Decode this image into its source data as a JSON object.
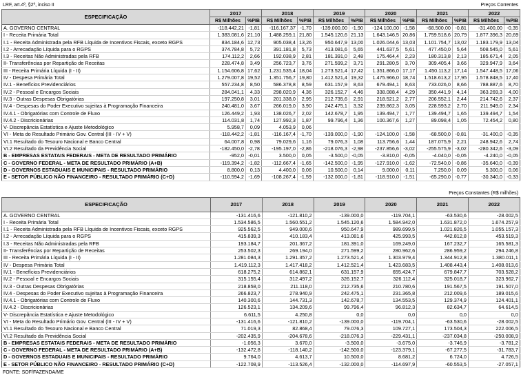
{
  "page": {
    "top_left_note": "LRF, art.4º, §2º, inciso II",
    "source_note": "FONTE: SOF/FAZENDA/ME"
  },
  "table1": {
    "caption": "Preços Correntes",
    "spec_header": "ESPECIFICAÇÃO",
    "years": [
      "2017",
      "2018",
      "2019",
      "2020",
      "2021",
      "2022"
    ],
    "subheaders": [
      "R$ Milhões",
      "%PIB"
    ],
    "rows": [
      {
        "label": "A. GOVERNO CENTRAL",
        "indent": 0,
        "bold": false,
        "section_top": false,
        "values": [
          "-118.442,21",
          "-1,81",
          "-116.167,37",
          "-1,70",
          "-139.000,00",
          "-1,90",
          "-124.100,00",
          "-1,58",
          "-68.500,00",
          "-0,81",
          "-31.400,00",
          "-0,35"
        ]
      },
      {
        "label": "I - Receita Primária Total",
        "indent": 1,
        "bold": false,
        "section_top": false,
        "values": [
          "1.383.081,6",
          "21,10",
          "1.488.259,1",
          "21,80",
          "1.545.120,6",
          "21,13",
          "1.643.146,5",
          "20,86",
          "1.759.518,6",
          "20,79",
          "1.877.396,3",
          "20,69"
        ]
      },
      {
        "label": "I.1 - Receita Administrada pela RFB Líquida de Incentivos Fiscais, exceto RGPS",
        "indent": 2,
        "bold": false,
        "section_top": false,
        "values": [
          "834.184,6",
          "12,73",
          "905.038,4",
          "13,26",
          "950.647,9",
          "13,00",
          "1.026.044,6",
          "13,03",
          "1.101.754,7",
          "13,02",
          "1.183.179,9",
          "13,04"
        ]
      },
      {
        "label": "I.2 - Arrecadação Líquida para o RGPS",
        "indent": 2,
        "bold": false,
        "section_top": false,
        "values": [
          "374.784,8",
          "5,72",
          "391.181,8",
          "5,73",
          "413.081,6",
          "5,65",
          "441.637,5",
          "5,61",
          "477.450,0",
          "5,64",
          "508.545,0",
          "5,61"
        ]
      },
      {
        "label": "I.3 - Receitas Não Administradas pela RFB",
        "indent": 2,
        "bold": false,
        "section_top": false,
        "values": [
          "174.112,2",
          "2,66",
          "192.038,9",
          "2,81",
          "181.391,0",
          "2,48",
          "175.464,4",
          "2,23",
          "180.313,8",
          "2,13",
          "185.671,4",
          "2,05"
        ]
      },
      {
        "label": "II- Transferências por Repartição de Receitas",
        "indent": 1,
        "bold": false,
        "section_top": false,
        "values": [
          "228.474,8",
          "3,49",
          "256.723,7",
          "3,76",
          "271.599,2",
          "3,71",
          "291.280,5",
          "3,70",
          "309.405,4",
          "3,66",
          "329.947,9",
          "3,64"
        ]
      },
      {
        "label": "III - Receita Primária Líquida (I - II)",
        "indent": 1,
        "bold": false,
        "section_top": false,
        "values": [
          "1.154.606,8",
          "17,62",
          "1.231.535,4",
          "18,04",
          "1.273.521,4",
          "17,42",
          "1.351.866,0",
          "17,17",
          "1.450.113,2",
          "17,14",
          "1.547.448,5",
          "17,06"
        ]
      },
      {
        "label": "IV - Despesa Primária Total",
        "indent": 1,
        "bold": false,
        "section_top": false,
        "values": [
          "1.279.007,8",
          "19,52",
          "1.351.756,7",
          "19,80",
          "1.412.521,4",
          "19,32",
          "1.475.966,0",
          "18,74",
          "1.518.613,2",
          "17,95",
          "1.578.848,5",
          "17,40"
        ]
      },
      {
        "label": "IV.1 - Benefícios Previdenciários",
        "indent": 2,
        "bold": false,
        "section_top": false,
        "values": [
          "557.234,8",
          "8,50",
          "586.378,8",
          "8,59",
          "631.157,9",
          "8,63",
          "679.494,1",
          "8,63",
          "733.026,0",
          "8,66",
          "788.887,6",
          "8,70"
        ]
      },
      {
        "label": "IV.2 - Pessoal e Encargos Sociais",
        "indent": 2,
        "bold": false,
        "section_top": false,
        "values": [
          "284.041,1",
          "4,33",
          "298.020,9",
          "4,36",
          "326.152,7",
          "4,46",
          "338.088,4",
          "4,29",
          "350.441,9",
          "4,14",
          "363.269,3",
          "4,00"
        ]
      },
      {
        "label": "IV.3 - Outras Despesas Obrigatórias",
        "indent": 2,
        "bold": false,
        "section_top": false,
        "values": [
          "197.250,8",
          "3,01",
          "201.338,0",
          "2,95",
          "212.735,6",
          "2,91",
          "218.521,2",
          "2,77",
          "206.552,1",
          "2,44",
          "214.742,6",
          "2,37"
        ]
      },
      {
        "label": "IV.4 - Despesas do Poder Executivo sujeitas à Programação Financeira",
        "indent": 2,
        "bold": false,
        "section_top": false,
        "values": [
          "240.481,0",
          "3,67",
          "266.019,0",
          "3,90",
          "242.475,1",
          "3,32",
          "239.862,3",
          "3,05",
          "228.593,2",
          "2,70",
          "211.949,0",
          "2,34"
        ]
      },
      {
        "label": "IV.4.1 - Obrigatórias com Controle de Fluxo",
        "indent": 3,
        "bold": false,
        "section_top": false,
        "values": [
          "126.449,2",
          "1,93",
          "138.026,7",
          "2,02",
          "142.678,7",
          "1,95",
          "139.494,7",
          "1,77",
          "139.494,7",
          "1,65",
          "139.494,7",
          "1,54"
        ]
      },
      {
        "label": "IV.4.2 - Discricionárias",
        "indent": 3,
        "bold": false,
        "section_top": false,
        "values": [
          "114.031,8",
          "1,74",
          "127.992,3",
          "1,87",
          "99.796,4",
          "1,36",
          "100.367,6",
          "1,27",
          "89.098,4",
          "1,05",
          "72.454,2",
          "0,80"
        ]
      },
      {
        "label": "V- Discrepância Estatística e Ajuste Metodológico",
        "indent": 0,
        "bold": false,
        "section_top": false,
        "values": [
          "5.958,7",
          "0,09",
          "4.053,9",
          "0,06",
          "",
          "",
          "",
          "",
          "",
          "",
          "",
          ""
        ]
      },
      {
        "label": "VI - Meta do Resultado Primário Gov. Central (III - IV + V)",
        "indent": 0,
        "bold": false,
        "section_top": false,
        "values": [
          "-118.442,2",
          "-1,81",
          "-116.167,4",
          "-1,70",
          "-139.000,0",
          "-1,90",
          "-124.100,0",
          "-1,58",
          "-68.500,0",
          "-0,81",
          "-31.400,0",
          "-0,35"
        ]
      },
      {
        "label": "VI.1 Resultado do Tesouro Nacional e Banco Central",
        "indent": 1,
        "bold": false,
        "section_top": false,
        "values": [
          "64.007,8",
          "0,98",
          "79.029,6",
          "1,16",
          "79.076,3",
          "1,08",
          "113.756,6",
          "1,44",
          "187.075,9",
          "2,21",
          "248.942,6",
          "2,74"
        ]
      },
      {
        "label": "VI.2 Resultado da Previdência Social",
        "indent": 1,
        "bold": false,
        "section_top": false,
        "values": [
          "-182.450,0",
          "-2,78",
          "-195.197,0",
          "-2,86",
          "-218.076,3",
          "-2,98",
          "-237.856,6",
          "-3,02",
          "-255.575,9",
          "-3,02",
          "-280.342,6",
          "-3,09"
        ]
      },
      {
        "label": "B -  EMPRESAS ESTATAIS FEDERAIS - META DE RESULTADO PRIMÁRIO",
        "indent": 0,
        "bold": true,
        "section_top": true,
        "values": [
          "-952,0",
          "-0,01",
          "3.500,0",
          "0,05",
          "-3.500,0",
          "-0,05",
          "-3.810,0",
          "-0,05",
          "-4.040,0",
          "-0,05",
          "-4.240,0",
          "-0,05"
        ]
      },
      {
        "label": "C - GOVERNO FEDERAL - META DE RESULTADO PRIMÁRIO (A+B)",
        "indent": 0,
        "bold": true,
        "section_top": false,
        "values": [
          "-119.394,2",
          "-1,82",
          "-112.667,4",
          "-1,65",
          "-142.500,0",
          "-1,95",
          "-127.910,0",
          "-1,62",
          "-72.540,0",
          "-0,86",
          "-35.640,0",
          "-0,39"
        ]
      },
      {
        "label": "D - GOVERNOS ESTADUAIS E MUNICIPAIS - RESULTADO PRIMÁRIO",
        "indent": 0,
        "bold": true,
        "section_top": false,
        "values": [
          "8.800,0",
          "0,13",
          "4.400,0",
          "0,06",
          "10.500,0",
          "0,14",
          "9.000,0",
          "0,11",
          "7.250,0",
          "0,09",
          "5.300,0",
          "0,06"
        ]
      },
      {
        "label": "E - SETOR PÚBLICO NÃO FINANCEIRO - RESULTADO PRIMÁRIO (C+D)",
        "indent": 0,
        "bold": true,
        "section_top": false,
        "values": [
          "-110.594,2",
          "-1,69",
          "-108.267,4",
          "-1,59",
          "-132.000,0",
          "-1,81",
          "-118.910,0",
          "-1,51",
          "-65.290,0",
          "-0,77",
          "-30.340,0",
          "-0,33"
        ]
      }
    ]
  },
  "table2": {
    "caption": "Preços Constantes (R$ milhões)",
    "spec_header": "ESPECIFICAÇÃO",
    "years": [
      "2017",
      "2018",
      "2019",
      "2020",
      "2021",
      "2022"
    ],
    "rows": [
      {
        "label": "A. GOVERNO CENTRAL",
        "indent": 0,
        "bold": false,
        "section_top": false,
        "values": [
          "-131.416,6",
          "-121.810,2",
          "-139.000,0",
          "-119.704,1",
          "-63.530,6",
          "-28.002,5"
        ]
      },
      {
        "label": "I - Receita Primária Total",
        "indent": 1,
        "bold": false,
        "section_top": false,
        "values": [
          "1.534.586,5",
          "1.560.551,2",
          "1.545.120,6",
          "1.584.942,0",
          "1.631.872,0",
          "1.674.257,9"
        ]
      },
      {
        "label": "I.1 - Receita Administrada pela RFB Líquida de Incentivos Fiscais, exceto RGPS",
        "indent": 2,
        "bold": false,
        "section_top": false,
        "values": [
          "925.562,5",
          "949.000,6",
          "950.647,9",
          "989.699,5",
          "1.021.826,5",
          "1.055.157,3"
        ]
      },
      {
        "label": "I.2 - Arrecadação Líquida para o RGPS",
        "indent": 2,
        "bold": false,
        "section_top": false,
        "values": [
          "415.839,3",
          "410.183,4",
          "413.081,6",
          "425.993,5",
          "442.812,8",
          "453.519,3"
        ]
      },
      {
        "label": "I.3 - Receitas Não Administradas pela RFB",
        "indent": 2,
        "bold": false,
        "section_top": false,
        "values": [
          "193.184,7",
          "201.367,2",
          "181.391,0",
          "169.249,0",
          "167.232,7",
          "165.581,3"
        ]
      },
      {
        "label": "II- Transferências por Repartição de Receitas",
        "indent": 1,
        "bold": false,
        "section_top": false,
        "values": [
          "253.502,3",
          "269.194,0",
          "271.599,2",
          "280.962,6",
          "286.959,2",
          "294.246,8"
        ]
      },
      {
        "label": "III - Receita Primária Líquida (I - II)",
        "indent": 1,
        "bold": false,
        "section_top": false,
        "values": [
          "1.281.084,3",
          "1.291.357,2",
          "1.273.521,4",
          "1.303.979,4",
          "1.344.912,8",
          "1.380.011,1"
        ]
      },
      {
        "label": "IV - Despesa Primária Total",
        "indent": 1,
        "bold": false,
        "section_top": false,
        "values": [
          "1.419.112,3",
          "1.417.418,2",
          "1.412.521,4",
          "1.423.683,5",
          "1.408.443,4",
          "1.408.013,6"
        ]
      },
      {
        "label": "IV.1 - Benefícios Previdenciários",
        "indent": 2,
        "bold": false,
        "section_top": false,
        "values": [
          "618.275,2",
          "614.862,1",
          "631.157,9",
          "655.424,7",
          "679.847,7",
          "703.528,2"
        ]
      },
      {
        "label": "IV.2 - Pessoal e Encargos Sociais",
        "indent": 2,
        "bold": false,
        "section_top": false,
        "values": [
          "315.155,4",
          "312.497,2",
          "326.152,7",
          "326.112,4",
          "325.018,7",
          "323.962,7"
        ]
      },
      {
        "label": "IV.3 - Outras Despesas Obrigatórias",
        "indent": 2,
        "bold": false,
        "section_top": false,
        "values": [
          "218.858,0",
          "211.118,0",
          "212.735,6",
          "210.780,6",
          "191.567,5",
          "191.507,0"
        ]
      },
      {
        "label": "IV.4 - Despesas do Poder Executivo sujeitas à Programação Financeira",
        "indent": 2,
        "bold": false,
        "section_top": false,
        "values": [
          "266.823,7",
          "278.940,9",
          "242.475,1",
          "231.365,8",
          "212.009,6",
          "189.015,6"
        ]
      },
      {
        "label": "IV.4.1 - Obrigatórias com Controle de Fluxo",
        "indent": 3,
        "bold": false,
        "section_top": false,
        "values": [
          "140.300,6",
          "144.731,3",
          "142.678,7",
          "134.553,5",
          "129.374,9",
          "124.401,1"
        ]
      },
      {
        "label": "IV.4.2 - Discricionárias",
        "indent": 3,
        "bold": false,
        "section_top": false,
        "values": [
          "126.523,1",
          "134.209,6",
          "99.796,4",
          "96.812,3",
          "82.634,7",
          "64.614,5"
        ]
      },
      {
        "label": "V- Discrepância Estatística e Ajuste Metodológico",
        "indent": 0,
        "bold": false,
        "section_top": false,
        "values": [
          "6.611,5",
          "4.250,8",
          "0,0",
          "0,0",
          "0,0",
          "0,0"
        ]
      },
      {
        "label": "VI - Meta do Resultado Primário Gov. Central (III - IV + V)",
        "indent": 0,
        "bold": false,
        "section_top": false,
        "values": [
          "-131.416,6",
          "-121.810,2",
          "-139.000,0",
          "-119.704,1",
          "-63.530,6",
          "-28.002,5"
        ]
      },
      {
        "label": "VI.1 Resultado do Tesouro Nacional e Banco Central",
        "indent": 1,
        "bold": false,
        "section_top": false,
        "values": [
          "71.019,3",
          "82.868,4",
          "79.076,3",
          "109.727,1",
          "173.504,3",
          "222.006,5"
        ]
      },
      {
        "label": "VI.2 Resultado da Previdência Social",
        "indent": 1,
        "bold": false,
        "section_top": false,
        "values": [
          "-202.435,9",
          "-204.678,6",
          "-218.076,3",
          "-229.431,1",
          "-237.034,8",
          "-250.008,9"
        ]
      },
      {
        "label": "B -  EMPRESAS ESTATAIS FEDERAIS - META DE RESULTADO PRIMÁRIO",
        "indent": 0,
        "bold": true,
        "section_top": true,
        "values": [
          "-1.056,3",
          "3.670,0",
          "-3.500,0",
          "-3.675,0",
          "-3.746,9",
          "-3.781,2"
        ]
      },
      {
        "label": "C - GOVERNO FEDERAL - META DE RESULTADO PRIMÁRIO (A+B)",
        "indent": 0,
        "bold": true,
        "section_top": false,
        "values": [
          "-132.472,8",
          "-118.140,2",
          "-142.500,0",
          "-123.379,1",
          "-67.277,5",
          "-31.783,7"
        ]
      },
      {
        "label": "D - GOVERNOS ESTADUAIS E MUNICIPAIS - RESULTADO PRIMÁRIO",
        "indent": 0,
        "bold": true,
        "section_top": false,
        "values": [
          "9.764,0",
          "4.613,7",
          "10.500,0",
          "8.681,2",
          "6.724,0",
          "4.726,5"
        ]
      },
      {
        "label": "E - SETOR PÚBLICO NÃO FINANCEIRO - RESULTADO PRIMÁRIO (C+D)",
        "indent": 0,
        "bold": true,
        "section_top": false,
        "values": [
          "-122.708,9",
          "-113.526,4",
          "-132.000,0",
          "-114.697,9",
          "-60.553,5",
          "-27.057,1"
        ]
      }
    ]
  }
}
